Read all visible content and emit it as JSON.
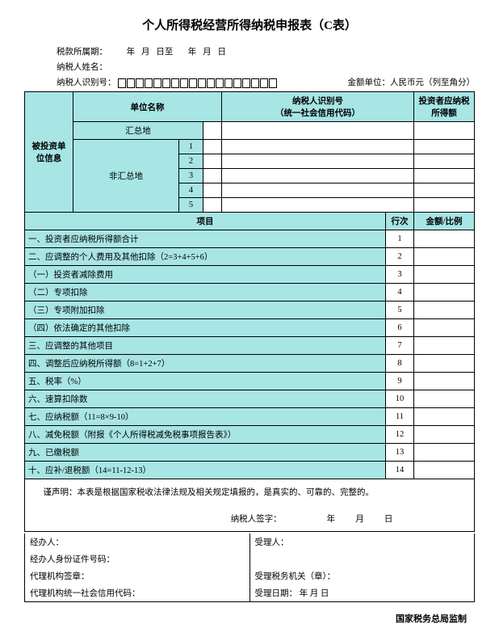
{
  "title": "个人所得税经营所得纳税申报表（C表）",
  "header": {
    "period_label": "税款所属期：",
    "period_fill": "年    月    日至        年    月    日",
    "taxpayer_name_label": "纳税人姓名：",
    "taxpayer_id_label": "纳税人识别号：",
    "currency_unit": "金额单位：人民币元（列至角分）"
  },
  "section1": {
    "left_label": "被投资单位信息",
    "col_unit": "单位名称",
    "col_tax_id": "纳税人识别号\n（统一社会信用代码）",
    "col_investor_tax": "投资者应纳税\n所得额",
    "summary_place": "汇总地",
    "non_summary": "非汇总地"
  },
  "section2": {
    "col_item": "项目",
    "col_seq": "行次",
    "col_amount": "金额/比例",
    "rows": [
      {
        "label": "一、投资者应纳税所得额合计",
        "n": "1"
      },
      {
        "label": "二、应调整的个人费用及其他扣除（2=3+4+5+6）",
        "n": "2"
      },
      {
        "label": "（一）投资者减除费用",
        "n": "3"
      },
      {
        "label": "（二）专项扣除",
        "n": "4"
      },
      {
        "label": "（三）专项附加扣除",
        "n": "5"
      },
      {
        "label": "（四）依法确定的其他扣除",
        "n": "6"
      },
      {
        "label": "三、应调整的其他项目",
        "n": "7"
      },
      {
        "label": "四、调整后应纳税所得额（8=1+2+7）",
        "n": "8"
      },
      {
        "label": "五、税率（%）",
        "n": "9"
      },
      {
        "label": "六、速算扣除数",
        "n": "10"
      },
      {
        "label": "七、应纳税额（11=8×9-10）",
        "n": "11"
      },
      {
        "label": "八、减免税额（附报《个人所得税减免税事项报告表》）",
        "n": "12"
      },
      {
        "label": "九、已缴税额",
        "n": "13"
      },
      {
        "label": "十、应补/退税额（14=11-12-13）",
        "n": "14"
      }
    ]
  },
  "declaration": {
    "text": "谨声明：本表是根据国家税收法律法规及相关规定填报的，是真实的、可靠的、完整的。",
    "sig_label": "纳税人签字：",
    "date_y": "年",
    "date_m": "月",
    "date_d": "日"
  },
  "footer": {
    "handler": "经办人：",
    "handler_id": "经办人身份证件号码：",
    "agent_stamp": "代理机构签章：",
    "agent_code": "代理机构统一社会信用代码：",
    "acceptor": "受理人：",
    "accept_org": "受理税务机关（章）：",
    "accept_date": "受理日期：           年     月     日",
    "bottom": "国家税务总局监制"
  },
  "colors": {
    "header_bg": "#a8e5e5",
    "border": "#000000"
  }
}
